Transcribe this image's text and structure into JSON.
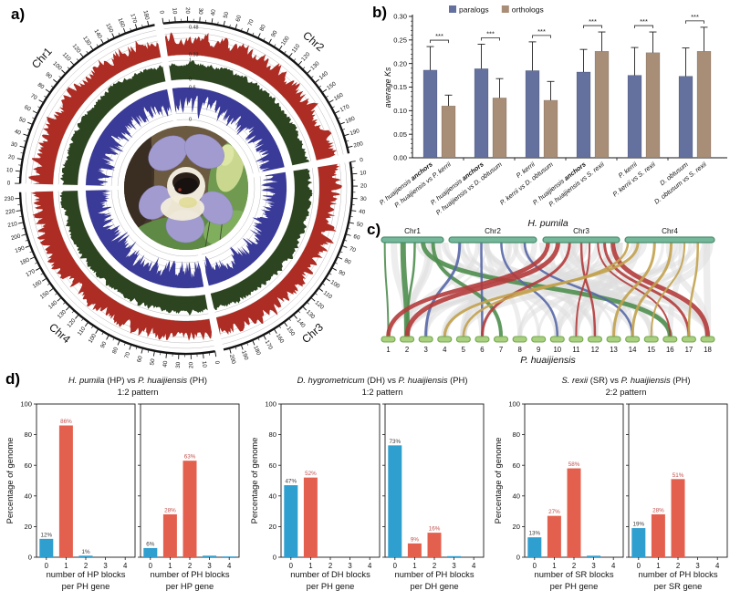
{
  "panel_labels": {
    "a": "a)",
    "b": "b)",
    "c": "c)",
    "d": "d)"
  },
  "circos": {
    "chromosomes": [
      {
        "name": "Chr1",
        "length": 185,
        "tick_max": 180
      },
      {
        "name": "Chr2",
        "length": 205,
        "tick_max": 200
      },
      {
        "name": "Chr3",
        "length": 205,
        "tick_max": 200
      },
      {
        "name": "Chr4",
        "length": 235,
        "tick_max": 230
      }
    ],
    "tick_interval": 10,
    "scale_labels": [
      {
        "r": 176,
        "t": "0.48"
      },
      {
        "r": 146,
        "t": "0.33"
      },
      {
        "r": 140,
        "t": "1"
      },
      {
        "r": 119,
        "t": "0"
      },
      {
        "r": 110,
        "t": "0.6"
      },
      {
        "r": 75,
        "t": "0"
      }
    ],
    "ring_colors": {
      "outer": "#141414",
      "ring1": "#ad2c23",
      "ring2": "#2c441f",
      "ring3": "#3a3a98"
    },
    "center_image": "purple-flower-photo"
  },
  "chart_data": [
    {
      "id": "ks_comparison",
      "type": "bar",
      "ylabel": "average Ks",
      "ylim": [
        0,
        0.3
      ],
      "yticks": [
        "0.00",
        "0.05",
        "0.10",
        "0.15",
        "0.20",
        "0.25",
        "0.30"
      ],
      "legend": [
        {
          "label": "paralogs",
          "color": "#64719e"
        },
        {
          "label": "orthologs",
          "color": "#a98e77"
        }
      ],
      "groups": [
        {
          "sig": "***",
          "bars": [
            {
              "label": [
                [
                  "P. huaijiensis ",
                  "i"
                ],
                [
                  "anchors",
                  "bi"
                ]
              ],
              "series": "paralogs",
              "value": 0.186,
              "err": 0.05
            },
            {
              "label": [
                [
                  "P. huaijiensis vs P. kerrii",
                  "i"
                ]
              ],
              "series": "orthologs",
              "value": 0.11,
              "err": 0.023
            }
          ]
        },
        {
          "sig": "***",
          "bars": [
            {
              "label": [
                [
                  "P. huaijiensis ",
                  "i"
                ],
                [
                  "anchors",
                  "bi"
                ]
              ],
              "series": "paralogs",
              "value": 0.189,
              "err": 0.052
            },
            {
              "label": [
                [
                  "P. huaijiensis vs D. obtusum",
                  "i"
                ]
              ],
              "series": "orthologs",
              "value": 0.127,
              "err": 0.041
            }
          ]
        },
        {
          "sig": "***",
          "bars": [
            {
              "label": [
                [
                  "P. kerrii",
                  "i"
                ]
              ],
              "series": "paralogs",
              "value": 0.185,
              "err": 0.061
            },
            {
              "label": [
                [
                  "P. kerrii vs D. obtusum",
                  "i"
                ]
              ],
              "series": "orthologs",
              "value": 0.122,
              "err": 0.04
            }
          ]
        },
        {
          "sig": "***",
          "bars": [
            {
              "label": [
                [
                  "P. huaijiensis ",
                  "i"
                ],
                [
                  "anchors",
                  "bi"
                ]
              ],
              "series": "paralogs",
              "value": 0.182,
              "err": 0.048
            },
            {
              "label": [
                [
                  "P. huaijiensis vs S. rexii",
                  "i"
                ]
              ],
              "series": "orthologs",
              "value": 0.226,
              "err": 0.041
            }
          ]
        },
        {
          "sig": "***",
          "bars": [
            {
              "label": [
                [
                  "P. kerrii",
                  "i"
                ]
              ],
              "series": "paralogs",
              "value": 0.175,
              "err": 0.059
            },
            {
              "label": [
                [
                  "P. kerrii vs S. rexii",
                  "i"
                ]
              ],
              "series": "orthologs",
              "value": 0.223,
              "err": 0.044
            }
          ]
        },
        {
          "sig": "***",
          "bars": [
            {
              "label": [
                [
                  "D. obtusum",
                  "i"
                ]
              ],
              "series": "paralogs",
              "value": 0.173,
              "err": 0.06
            },
            {
              "label": [
                [
                  "D. obtusum vs S. rexii",
                  "i"
                ]
              ],
              "series": "orthologs",
              "value": 0.226,
              "err": 0.051
            }
          ]
        }
      ]
    },
    {
      "id": "synteny_map",
      "type": "ribbon-map",
      "top_label": "H. pumila",
      "bottom_label": "P. huaijiensis",
      "top_chromosomes": [
        {
          "name": "Chr1",
          "x0": 18,
          "x1": 86
        },
        {
          "name": "Chr2",
          "x0": 92,
          "x1": 188
        },
        {
          "name": "Chr3",
          "x0": 195,
          "x1": 279
        },
        {
          "name": "Chr4",
          "x0": 285,
          "x1": 383
        }
      ],
      "bottom_segments": [
        "1",
        "2",
        "3",
        "4",
        "5",
        "6",
        "7",
        "8",
        "9",
        "10",
        "11",
        "12",
        "13",
        "14",
        "15",
        "16",
        "17",
        "18"
      ],
      "ribbon_colors": {
        "green": "#4e8e4e",
        "blue": "#5767a7",
        "red": "#b43b3b",
        "gold": "#c2a14d",
        "gray": "#dedede"
      },
      "ribbons": [
        {
          "fx": 0.01,
          "to": 1,
          "c": "green",
          "w": 2
        },
        {
          "fx": 0.065,
          "to": 2,
          "c": "green",
          "w": 6
        },
        {
          "fx": 0.1,
          "to": 2,
          "c": "green",
          "w": 2.5
        },
        {
          "fx": 0.125,
          "to": 16,
          "c": "green",
          "w": 5
        },
        {
          "fx": 0.155,
          "to": 7,
          "c": "green",
          "w": 4
        },
        {
          "fx": 0.235,
          "to": 3,
          "c": "blue",
          "w": 3
        },
        {
          "fx": 0.3,
          "to": 6,
          "c": "blue",
          "w": 2.5
        },
        {
          "fx": 0.36,
          "to": 10,
          "c": "blue",
          "w": 2.5
        },
        {
          "fx": 0.43,
          "to": 14,
          "c": "blue",
          "w": 2.5
        },
        {
          "fx": 0.5,
          "to": 1,
          "c": "red",
          "w": 4.5
        },
        {
          "fx": 0.53,
          "to": 2,
          "c": "red",
          "w": 5
        },
        {
          "fx": 0.565,
          "to": 6,
          "c": "red",
          "w": 3
        },
        {
          "fx": 0.6,
          "to": 12,
          "c": "red",
          "w": 2.5
        },
        {
          "fx": 0.625,
          "to": 11,
          "c": "red",
          "w": 2
        },
        {
          "fx": 0.65,
          "to": 16,
          "c": "red",
          "w": 2
        },
        {
          "fx": 0.67,
          "to": 17,
          "c": "red",
          "w": 3
        },
        {
          "fx": 0.695,
          "to": 18,
          "c": "red",
          "w": 5
        },
        {
          "fx": 0.74,
          "to": 5,
          "c": "gold",
          "w": 2.5
        },
        {
          "fx": 0.77,
          "to": 4,
          "c": "gold",
          "w": 3
        },
        {
          "fx": 0.82,
          "to": 13,
          "c": "gold",
          "w": 3
        },
        {
          "fx": 0.87,
          "to": 14,
          "c": "gold",
          "w": 3
        },
        {
          "fx": 0.91,
          "to": 15,
          "c": "gold",
          "w": 2
        },
        {
          "fx": 0.95,
          "to": 17,
          "c": "gold",
          "w": 2.5
        }
      ]
    },
    {
      "id": "hp_vs_ph",
      "type": "bar",
      "title": [
        [
          "H. pumila",
          "i"
        ],
        [
          " (HP) vs ",
          "n"
        ],
        [
          "P. huaijiensis",
          "i"
        ],
        [
          " (PH)",
          "n"
        ]
      ],
      "subtitle": "1:2 pattern",
      "ylabel": "Percentage of genome",
      "ylim": [
        0,
        100
      ],
      "yticks": [
        0,
        20,
        40,
        60,
        80,
        100
      ],
      "subplots": [
        {
          "xlabel": [
            "number of HP blocks",
            "per PH gene"
          ],
          "categories": [
            "0",
            "1",
            "2",
            "3",
            "4"
          ],
          "values": [
            12,
            86,
            1,
            0,
            0
          ],
          "bar_labels": [
            "12%",
            "86%",
            "1%",
            "",
            ""
          ],
          "bar_colors": [
            "blue",
            "red",
            "blue",
            "blue",
            "blue"
          ]
        },
        {
          "xlabel": [
            "number of PH blocks",
            "per HP gene"
          ],
          "categories": [
            "0",
            "1",
            "2",
            "3",
            "4"
          ],
          "values": [
            6,
            28,
            63,
            1,
            0.5
          ],
          "bar_labels": [
            "6%",
            "28%",
            "63%",
            "",
            ""
          ],
          "bar_colors": [
            "blue",
            "red",
            "red",
            "blue",
            "blue"
          ]
        }
      ]
    },
    {
      "id": "dh_vs_ph",
      "type": "bar",
      "title": [
        [
          "D. hygrometricum",
          "i"
        ],
        [
          " (DH) vs ",
          "n"
        ],
        [
          "P. huaijiensis",
          "i"
        ],
        [
          " (PH)",
          "n"
        ]
      ],
      "subtitle": "1:2 pattern",
      "ylabel": "Percentage of genome",
      "ylim": [
        0,
        100
      ],
      "yticks": [
        0,
        20,
        40,
        60,
        80,
        100
      ],
      "subplots": [
        {
          "xlabel": [
            "number of DH blocks",
            "per PH gene"
          ],
          "categories": [
            "0",
            "1",
            "2",
            "3",
            "4"
          ],
          "values": [
            47,
            52,
            0,
            0,
            0
          ],
          "bar_labels": [
            "47%",
            "52%",
            "",
            "",
            ""
          ],
          "bar_colors": [
            "blue",
            "red",
            "red",
            "blue",
            "blue"
          ]
        },
        {
          "xlabel": [
            "number of PH blocks",
            "per DH gene"
          ],
          "categories": [
            "0",
            "1",
            "2",
            "3",
            "4"
          ],
          "values": [
            73,
            9,
            16,
            0.7,
            0
          ],
          "bar_labels": [
            "73%",
            "9%",
            "16%",
            "",
            ""
          ],
          "bar_colors": [
            "blue",
            "red",
            "red",
            "blue",
            "blue"
          ]
        }
      ]
    },
    {
      "id": "sr_vs_ph",
      "type": "bar",
      "title": [
        [
          "S. rexii",
          "i"
        ],
        [
          " (SR) vs ",
          "n"
        ],
        [
          "P. huaijiensis",
          "i"
        ],
        [
          " (PH)",
          "n"
        ]
      ],
      "subtitle": "2:2 pattern",
      "ylabel": "Percentage of genome",
      "ylim": [
        0,
        100
      ],
      "yticks": [
        0,
        20,
        40,
        60,
        80,
        100
      ],
      "subplots": [
        {
          "xlabel": [
            "number of SR blocks",
            "per PH gene"
          ],
          "categories": [
            "0",
            "1",
            "2",
            "3",
            "4"
          ],
          "values": [
            13,
            27,
            58,
            1,
            0
          ],
          "bar_labels": [
            "13%",
            "27%",
            "58%",
            "",
            ""
          ],
          "bar_colors": [
            "blue",
            "red",
            "red",
            "blue",
            "blue"
          ]
        },
        {
          "xlabel": [
            "number of PH blocks",
            "per SR gene"
          ],
          "categories": [
            "0",
            "1",
            "2",
            "3",
            "4"
          ],
          "values": [
            19,
            28,
            51,
            0,
            0
          ],
          "bar_labels": [
            "19%",
            "28%",
            "51%",
            "",
            ""
          ],
          "bar_colors": [
            "blue",
            "red",
            "red",
            "blue",
            "blue"
          ]
        }
      ]
    }
  ],
  "d_style": {
    "blue": "#2f9fd0",
    "red": "#e4604e",
    "label_red": "#c0504d",
    "label_dark": "#3a3a3a"
  }
}
